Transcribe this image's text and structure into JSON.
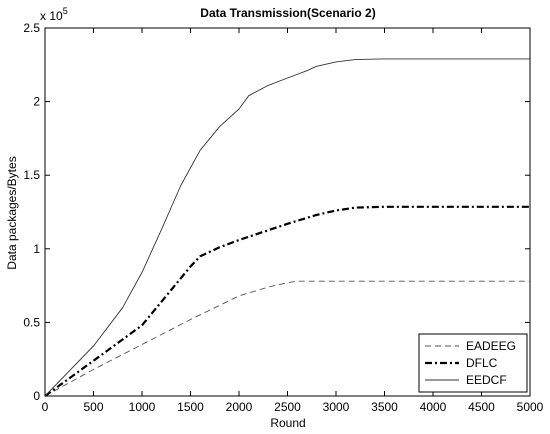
{
  "chart_data": {
    "type": "line",
    "title": "Data Transmission(Scenario 2)",
    "xlabel": "Round",
    "ylabel": "Data packages/Bytes",
    "y_multiplier_label": "x 10",
    "y_multiplier_exponent": "5",
    "xlim": [
      0,
      5000
    ],
    "ylim": [
      0,
      2.5
    ],
    "xticks": [
      0,
      500,
      1000,
      1500,
      2000,
      2500,
      3000,
      3500,
      4000,
      4500,
      5000
    ],
    "xtick_labels": [
      "0",
      "500",
      "1000",
      "1500",
      "2000",
      "2500",
      "3000",
      "3500",
      "4000",
      "4500",
      "5000"
    ],
    "yticks": [
      0,
      0.5,
      1,
      1.5,
      2,
      2.5
    ],
    "ytick_labels": [
      "0",
      "0.5",
      "1",
      "1.5",
      "2",
      "2.5"
    ],
    "grid": false,
    "legend_position": "bottom-right",
    "series": [
      {
        "name": "EADEEG",
        "style": "dashed",
        "x": [
          0,
          500,
          1000,
          1500,
          2000,
          2300,
          2500,
          2600,
          3000,
          4000,
          5000
        ],
        "y": [
          0,
          0.18,
          0.35,
          0.52,
          0.68,
          0.74,
          0.77,
          0.78,
          0.78,
          0.78,
          0.78
        ]
      },
      {
        "name": "DFLC",
        "style": "dashdot",
        "x": [
          0,
          500,
          1000,
          1300,
          1500,
          1600,
          1800,
          2000,
          2500,
          2800,
          3000,
          3200,
          3500,
          4000,
          5000
        ],
        "y": [
          0,
          0.24,
          0.48,
          0.72,
          0.88,
          0.95,
          1.01,
          1.06,
          1.17,
          1.23,
          1.26,
          1.28,
          1.285,
          1.285,
          1.285
        ]
      },
      {
        "name": "EEDCF",
        "style": "solid",
        "x": [
          0,
          500,
          800,
          1000,
          1200,
          1400,
          1600,
          1800,
          2000,
          2100,
          2300,
          2500,
          2700,
          2800,
          3000,
          3200,
          3500,
          4000,
          5000
        ],
        "y": [
          0,
          0.34,
          0.6,
          0.84,
          1.13,
          1.43,
          1.67,
          1.83,
          1.95,
          2.04,
          2.11,
          2.16,
          2.21,
          2.24,
          2.27,
          2.285,
          2.29,
          2.29,
          2.29
        ]
      }
    ]
  }
}
